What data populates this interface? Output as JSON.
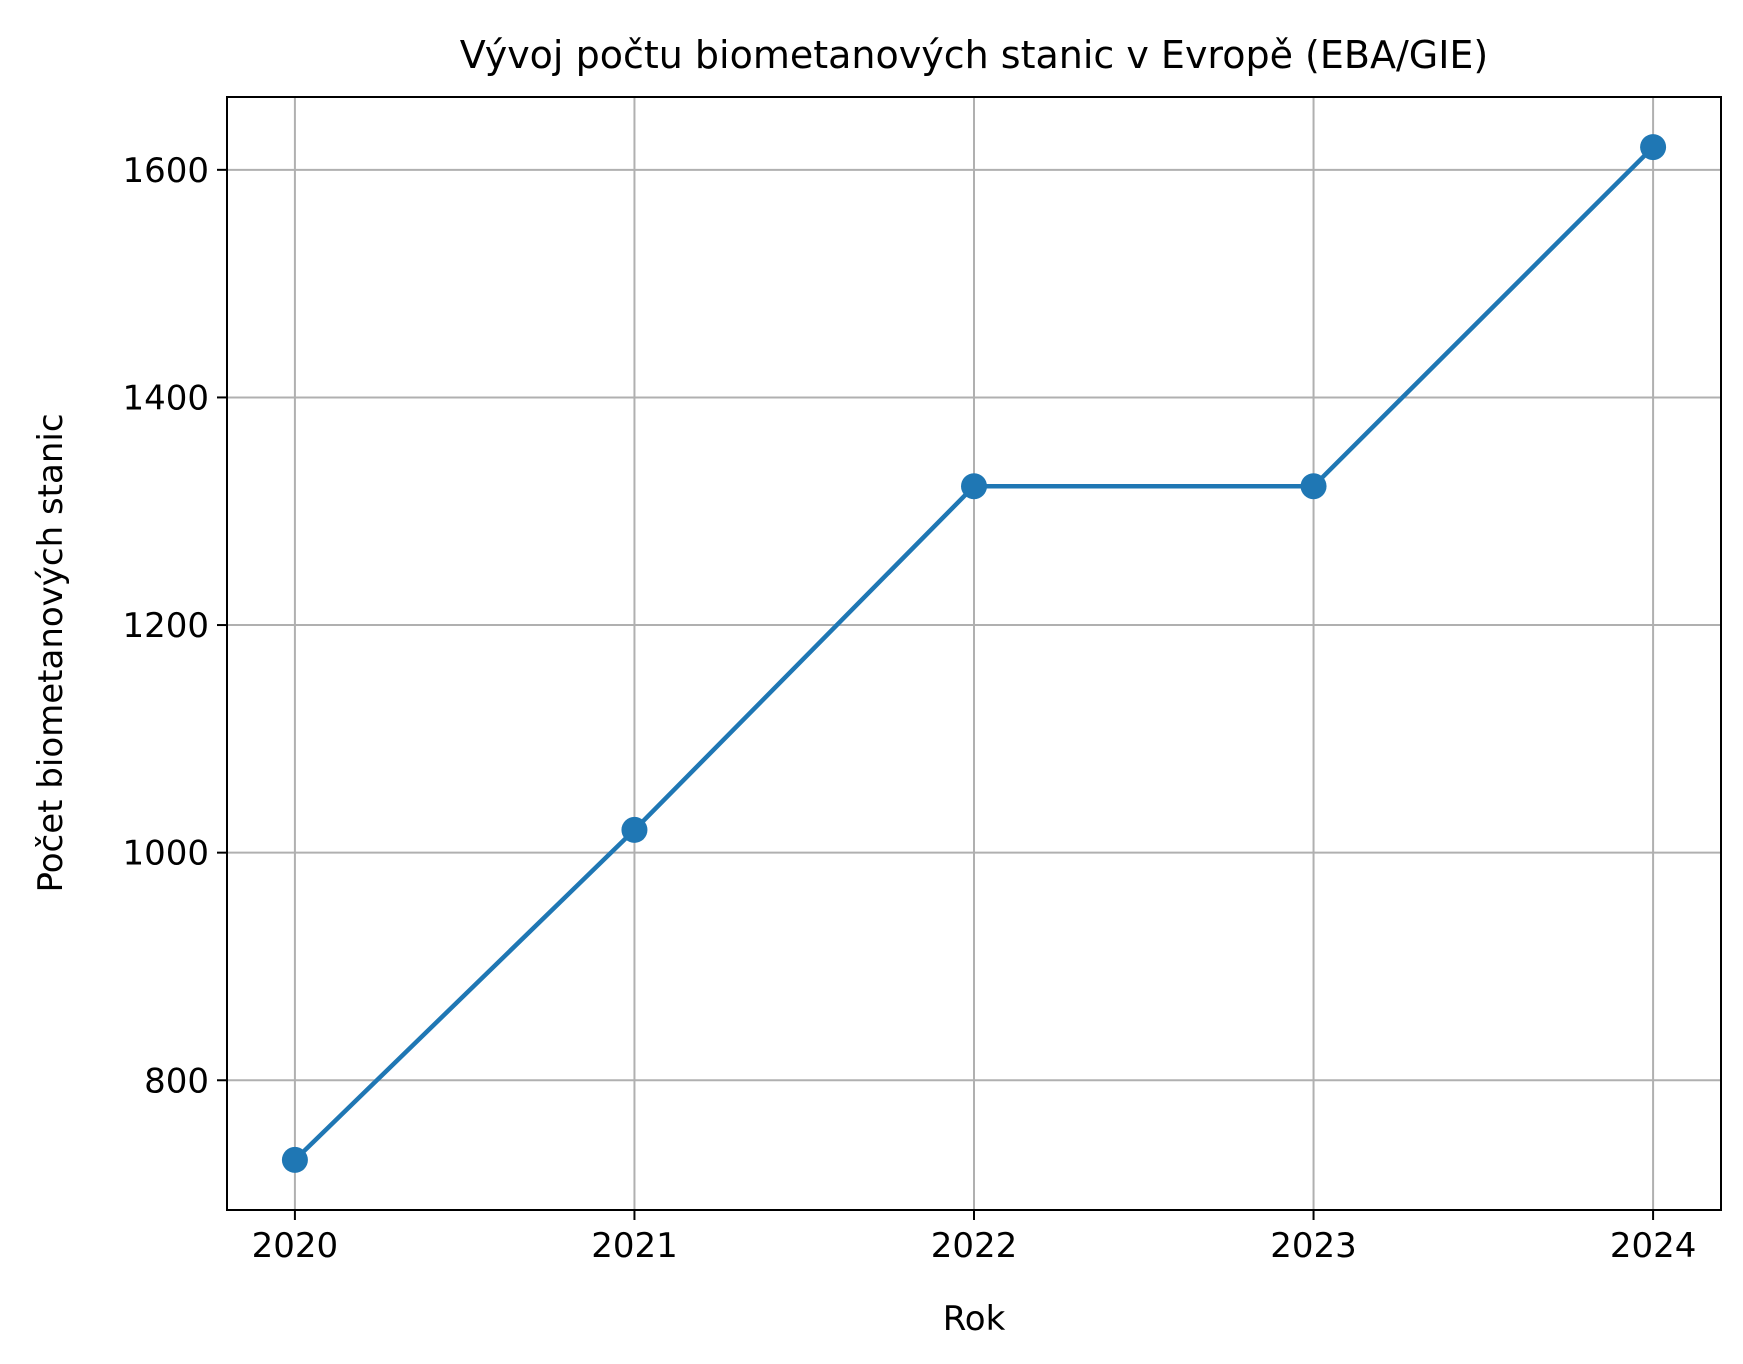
{
  "chart_data": {
    "type": "line",
    "title": "Vývoj počtu biometanových stanic v Evropě (EBA/GIE)",
    "xlabel": "Rok",
    "ylabel": "Počet biometanových stanic",
    "x": [
      2020,
      2021,
      2022,
      2023,
      2024
    ],
    "series": [
      {
        "values": [
          730,
          1020,
          1322,
          1322,
          1620
        ],
        "color": "#1f77b4",
        "marker": "circle"
      }
    ],
    "xticks": [
      "2020",
      "2021",
      "2022",
      "2023",
      "2024"
    ],
    "yticks": [
      "800",
      "1000",
      "1200",
      "1400",
      "1600"
    ],
    "xlim": [
      2019.8,
      2024.2
    ],
    "ylim": [
      686,
      1664
    ],
    "grid": true,
    "legend": "none"
  }
}
